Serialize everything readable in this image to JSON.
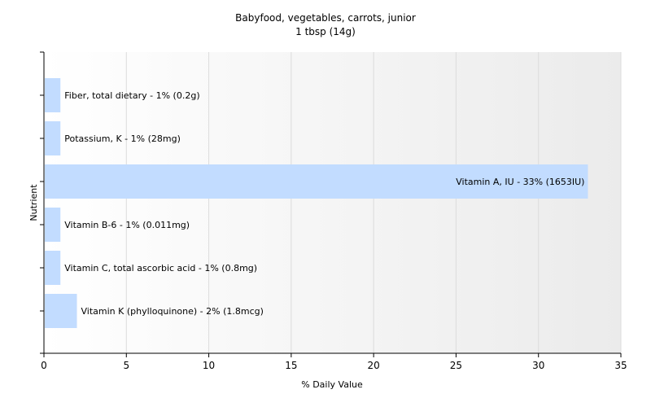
{
  "chart_data": {
    "type": "bar",
    "orientation": "horizontal",
    "title": "Babyfood, vegetables, carrots, junior",
    "subtitle": "1 tbsp (14g)",
    "xlabel": "% Daily Value",
    "ylabel": "Nutrient",
    "xlim": [
      0,
      35
    ],
    "xticks": [
      0,
      5,
      10,
      15,
      20,
      25,
      30,
      35
    ],
    "grid": "vertical",
    "bar_color": "#c2dcff",
    "categories": [
      "Fiber, total dietary",
      "Potassium, K",
      "Vitamin A, IU",
      "Vitamin B-6",
      "Vitamin C, total ascorbic acid",
      "Vitamin K (phylloquinone)"
    ],
    "values": [
      1,
      1,
      33,
      1,
      1,
      2
    ],
    "data_labels": [
      "Fiber, total dietary - 1% (0.2g)",
      "Potassium, K - 1% (28mg)",
      "Vitamin A, IU - 33% (1653IU)",
      "Vitamin B-6 - 1% (0.011mg)",
      "Vitamin C, total ascorbic acid - 1% (0.8mg)",
      "Vitamin K (phylloquinone) - 2% (1.8mcg)"
    ]
  }
}
